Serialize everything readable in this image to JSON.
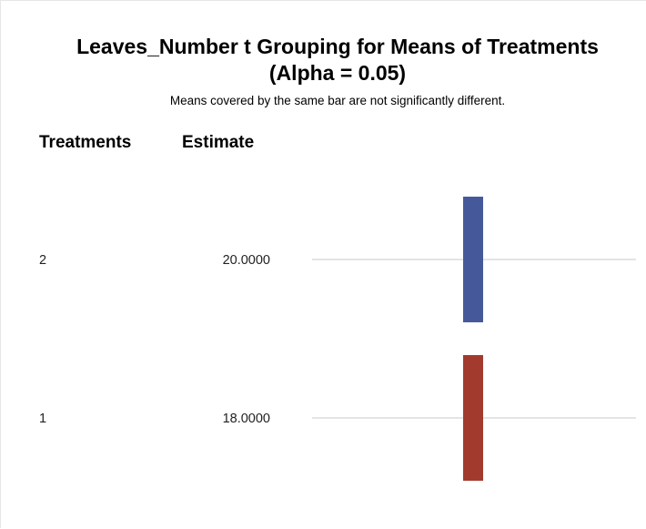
{
  "chart_data": {
    "type": "table",
    "title": "Leaves_Number t Grouping for Means of Treatments (Alpha = 0.05)",
    "subtitle": "Means covered by the same bar are not significantly different.",
    "columns": [
      "Treatments",
      "Estimate"
    ],
    "rows": [
      {
        "treatment": "2",
        "estimate": "20.0000",
        "group": 1
      },
      {
        "treatment": "1",
        "estimate": "18.0000",
        "group": 2
      }
    ],
    "group_colors": [
      "#45599a",
      "#a23a2e"
    ],
    "grid": true
  }
}
